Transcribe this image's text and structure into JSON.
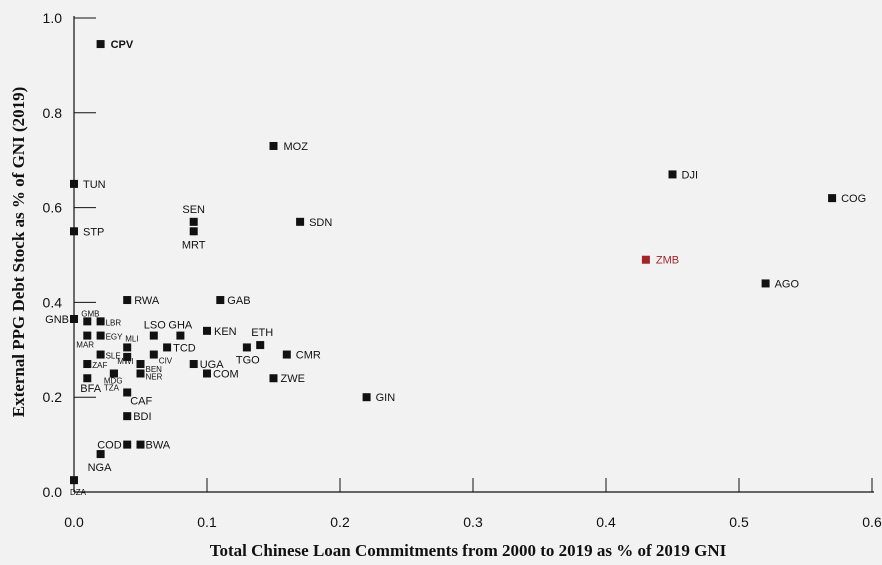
{
  "chart_data": {
    "type": "scatter",
    "title": "",
    "xlabel": "Total Chinese Loan Commitments from 2000 to 2019 as % of 2019 GNI",
    "ylabel": "External PPG Debt Stock as % of GNI (2019)",
    "xlim": [
      0,
      0.6
    ],
    "ylim": [
      0,
      1.0
    ],
    "x_ticks": [
      "0.0",
      "0.1",
      "0.2",
      "0.3",
      "0.4",
      "0.5",
      "0.6"
    ],
    "y_ticks": [
      "0.0",
      "0.2",
      "0.4",
      "0.6",
      "0.8",
      "1.0"
    ],
    "grid": false,
    "colors": {
      "default": "#111111",
      "highlight": "#a3252b"
    },
    "points": [
      {
        "label": "CPV",
        "x": 0.02,
        "y": 0.945
      },
      {
        "label": "MOZ",
        "x": 0.15,
        "y": 0.73
      },
      {
        "label": "TUN",
        "x": 0.0,
        "y": 0.65
      },
      {
        "label": "DJI",
        "x": 0.45,
        "y": 0.67
      },
      {
        "label": "COG",
        "x": 0.57,
        "y": 0.62
      },
      {
        "label": "SEN",
        "x": 0.09,
        "y": 0.57
      },
      {
        "label": "SDN",
        "x": 0.17,
        "y": 0.57
      },
      {
        "label": "STP",
        "x": 0.0,
        "y": 0.55
      },
      {
        "label": "MRT",
        "x": 0.09,
        "y": 0.55
      },
      {
        "label": "ZMB",
        "x": 0.43,
        "y": 0.49
      },
      {
        "label": "AGO",
        "x": 0.52,
        "y": 0.44
      },
      {
        "label": "RWA",
        "x": 0.04,
        "y": 0.405
      },
      {
        "label": "GAB",
        "x": 0.11,
        "y": 0.405
      },
      {
        "label": "GNB",
        "x": 0.0,
        "y": 0.365
      },
      {
        "label": "GMB",
        "x": 0.01,
        "y": 0.36
      },
      {
        "label": "LBR",
        "x": 0.02,
        "y": 0.36
      },
      {
        "label": "KEN",
        "x": 0.1,
        "y": 0.34
      },
      {
        "label": "LSO",
        "x": 0.06,
        "y": 0.33
      },
      {
        "label": "GHA",
        "x": 0.08,
        "y": 0.33
      },
      {
        "label": "MAR",
        "x": 0.01,
        "y": 0.33
      },
      {
        "label": "EGY",
        "x": 0.02,
        "y": 0.33
      },
      {
        "label": "ETH",
        "x": 0.14,
        "y": 0.31
      },
      {
        "label": "MLI",
        "x": 0.04,
        "y": 0.305
      },
      {
        "label": "TCD",
        "x": 0.07,
        "y": 0.305
      },
      {
        "label": "TGO",
        "x": 0.13,
        "y": 0.305
      },
      {
        "label": "SLE",
        "x": 0.02,
        "y": 0.29
      },
      {
        "label": "CIV",
        "x": 0.06,
        "y": 0.29
      },
      {
        "label": "CMR",
        "x": 0.16,
        "y": 0.29
      },
      {
        "label": "ZAF",
        "x": 0.01,
        "y": 0.27
      },
      {
        "label": "MWI",
        "x": 0.04,
        "y": 0.285
      },
      {
        "label": "BEN",
        "x": 0.05,
        "y": 0.27
      },
      {
        "label": "UGA",
        "x": 0.09,
        "y": 0.27
      },
      {
        "label": "NER",
        "x": 0.05,
        "y": 0.25
      },
      {
        "label": "COM",
        "x": 0.1,
        "y": 0.25
      },
      {
        "label": "MDG",
        "x": 0.03,
        "y": 0.25
      },
      {
        "label": "TZA",
        "x": 0.03,
        "y": 0.25
      },
      {
        "label": "BFA",
        "x": 0.01,
        "y": 0.24
      },
      {
        "label": "ZWE",
        "x": 0.15,
        "y": 0.24
      },
      {
        "label": "CAF",
        "x": 0.04,
        "y": 0.21
      },
      {
        "label": "GIN",
        "x": 0.22,
        "y": 0.2
      },
      {
        "label": "BDI",
        "x": 0.04,
        "y": 0.16
      },
      {
        "label": "COD",
        "x": 0.04,
        "y": 0.1
      },
      {
        "label": "BWA",
        "x": 0.05,
        "y": 0.1
      },
      {
        "label": "NGA",
        "x": 0.02,
        "y": 0.08
      },
      {
        "label": "DZA",
        "x": 0.0,
        "y": 0.025
      }
    ]
  }
}
